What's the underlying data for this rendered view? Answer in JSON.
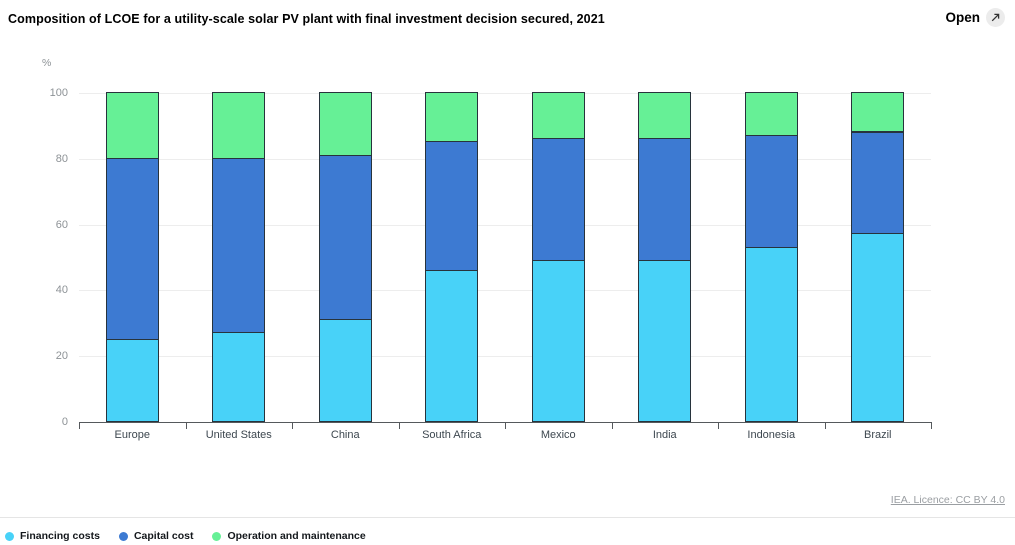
{
  "header": {
    "title": "Composition of LCOE for a utility-scale solar PV plant with final investment decision secured, 2021",
    "open_label": "Open"
  },
  "chart_data": {
    "type": "bar",
    "stacked": true,
    "title": "Composition of LCOE for a utility-scale solar PV plant with final investment decision secured, 2021",
    "unit": "%",
    "ylabel": "%",
    "xlabel": "",
    "ylim": [
      0,
      100
    ],
    "yticks": [
      0,
      20,
      40,
      60,
      80,
      100
    ],
    "grid": true,
    "legend_position": "bottom-left",
    "categories": [
      "Europe",
      "United States",
      "China",
      "South Africa",
      "Mexico",
      "India",
      "Indonesia",
      "Brazil"
    ],
    "series": [
      {
        "name": "Financing costs",
        "color": "#48d2f8",
        "values": [
          25,
          27,
          31,
          46,
          49,
          49,
          53,
          57
        ]
      },
      {
        "name": "Capital cost",
        "color": "#3d7ad2",
        "values": [
          55,
          53,
          50,
          39,
          37,
          37,
          34,
          31
        ]
      },
      {
        "name": "Operation and maintenance",
        "color": "#66f096",
        "values": [
          20,
          20,
          19,
          15,
          14,
          14,
          13,
          12
        ]
      }
    ]
  },
  "footer": {
    "licence": "IEA. Licence: CC BY 4.0"
  }
}
